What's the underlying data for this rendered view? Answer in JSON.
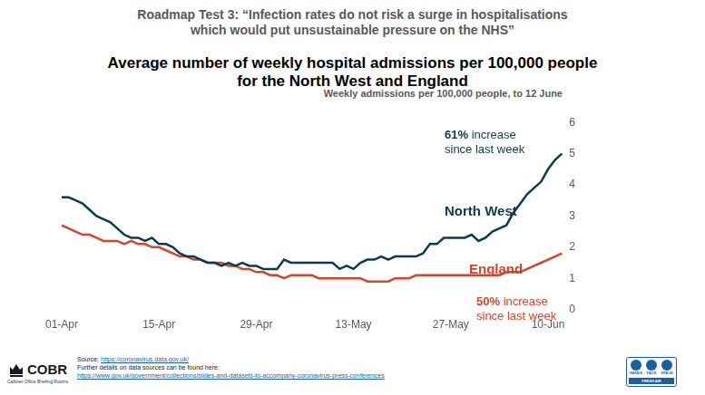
{
  "header": {
    "title": [
      "Roadmap Test 3: “Infection rates do not risk a surge in hospitalisations",
      "which would put unsustainable pressure on the NHS”"
    ]
  },
  "chart_data": {
    "type": "line",
    "title": [
      "Average number of weekly hospital admissions per 100,000 people",
      "for the North West and England"
    ],
    "subtitle": "Weekly admissions per 100,000 people, to 12 June",
    "categories": [
      "01-Apr",
      null,
      null,
      null,
      null,
      null,
      null,
      null,
      null,
      null,
      null,
      null,
      null,
      null,
      "15-Apr",
      null,
      null,
      null,
      null,
      null,
      null,
      null,
      null,
      null,
      null,
      null,
      null,
      null,
      "29-Apr",
      null,
      null,
      null,
      null,
      null,
      null,
      null,
      null,
      null,
      null,
      null,
      null,
      null,
      "13-May",
      null,
      null,
      null,
      null,
      null,
      null,
      null,
      null,
      null,
      null,
      null,
      null,
      null,
      "27-May",
      null,
      null,
      null,
      null,
      null,
      null,
      null,
      null,
      null,
      null,
      null,
      null,
      null,
      "10-Jun",
      null,
      null
    ],
    "series": [
      {
        "name": "North West",
        "color": "#0e3a4f",
        "annotation": [
          "61% increase",
          "since last week"
        ],
        "values": [
          3.6,
          3.6,
          3.5,
          3.4,
          3.2,
          3.0,
          2.9,
          2.8,
          2.6,
          2.4,
          2.3,
          2.3,
          2.2,
          2.3,
          2.1,
          2.1,
          2.0,
          1.8,
          1.7,
          1.7,
          1.6,
          1.5,
          1.5,
          1.4,
          1.5,
          1.4,
          1.5,
          1.4,
          1.4,
          1.3,
          1.3,
          1.3,
          1.6,
          1.5,
          1.5,
          1.5,
          1.5,
          1.5,
          1.5,
          1.5,
          1.3,
          1.4,
          1.3,
          1.5,
          1.6,
          1.6,
          1.7,
          1.6,
          1.7,
          1.7,
          1.7,
          1.7,
          1.8,
          2.1,
          2.1,
          2.3,
          2.3,
          2.3,
          2.3,
          2.4,
          2.2,
          2.3,
          2.5,
          2.6,
          2.7,
          3.1,
          3.4,
          3.7,
          3.9,
          4.1,
          4.5,
          4.8,
          5.0
        ]
      },
      {
        "name": "England",
        "color": "#d2452f",
        "annotation": [
          "50% increase",
          "since last week"
        ],
        "values": [
          2.7,
          2.6,
          2.5,
          2.4,
          2.4,
          2.3,
          2.2,
          2.2,
          2.2,
          2.1,
          2.2,
          2.1,
          2.1,
          2.0,
          2.0,
          1.9,
          1.8,
          1.7,
          1.7,
          1.6,
          1.6,
          1.5,
          1.5,
          1.5,
          1.4,
          1.4,
          1.3,
          1.3,
          1.2,
          1.2,
          1.1,
          1.1,
          1.0,
          1.1,
          1.1,
          1.1,
          1.1,
          1.0,
          1.0,
          1.0,
          1.0,
          1.0,
          1.0,
          1.0,
          0.9,
          0.9,
          0.9,
          0.9,
          1.0,
          1.0,
          1.0,
          1.1,
          1.1,
          1.1,
          1.1,
          1.1,
          1.1,
          1.1,
          1.1,
          1.1,
          1.1,
          1.1,
          1.1,
          1.1,
          1.2,
          1.2,
          1.2,
          1.3,
          1.4,
          1.5,
          1.6,
          1.7,
          1.8
        ]
      }
    ],
    "ylim": [
      0,
      6
    ],
    "yticks": [
      0,
      1,
      2,
      3,
      4,
      5,
      6
    ],
    "grid": false
  },
  "footer": {
    "logo": {
      "name": "COBR",
      "subtitle": "Cabinet Office Briefing Rooms"
    },
    "source_label": "Source:",
    "source_url": "https://coronavirus.data.gov.uk/",
    "details": "Further details on data sources can be found here:",
    "details_url": "https://www.gov.uk/government/collections/slides-and-datasets-to-accompany-coronavirus-press-conferences",
    "badge": {
      "items": [
        "HANDS",
        "FACE",
        "SPACE"
      ],
      "banner": "FRESH AIR"
    }
  }
}
